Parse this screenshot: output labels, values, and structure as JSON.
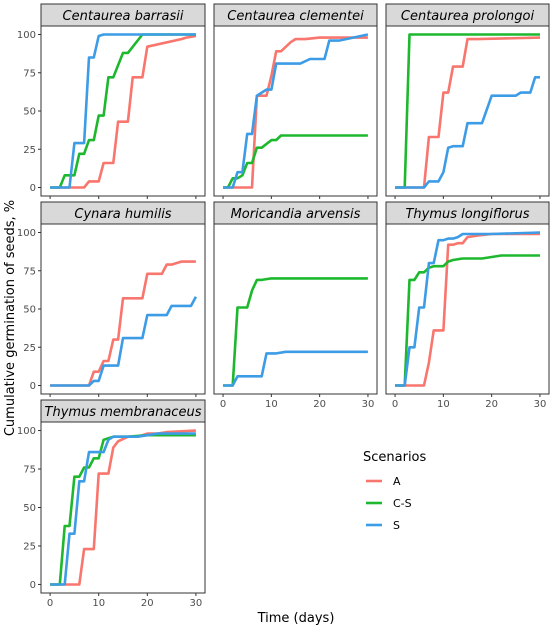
{
  "chart_data": {
    "type": "line",
    "ylabel": "Cumulative germination of seeds, %",
    "xlabel": "Time (days)",
    "xlim": [
      0,
      30
    ],
    "ylim": [
      0,
      100
    ],
    "xticks": [
      "0",
      "10",
      "20",
      "30"
    ],
    "yticks": [
      "0",
      "25",
      "50",
      "75",
      "100"
    ],
    "grid": false,
    "legend": {
      "title": "Scenarios",
      "placement": "bottom-right",
      "entries": [
        {
          "label": "A",
          "color": "#F8766D"
        },
        {
          "label": "C-S",
          "color": "#1DB82E"
        },
        {
          "label": "S",
          "color": "#3D9CE6"
        }
      ]
    },
    "panels": [
      {
        "species": "Centaurea barrasii",
        "series": [
          {
            "name": "A",
            "x": [
              0,
              7,
              8,
              10,
              11,
              13,
              14,
              16,
              17,
              19,
              20,
              27,
              28,
              30
            ],
            "y": [
              0,
              0,
              4,
              4,
              16,
              16,
              43,
              43,
              72,
              72,
              92,
              97,
              98,
              99
            ]
          },
          {
            "name": "C-S",
            "x": [
              0,
              2,
              3,
              5,
              6,
              7,
              8,
              9,
              10,
              11,
              12,
              13,
              15,
              16,
              19,
              30
            ],
            "y": [
              0,
              0,
              8,
              8,
              22,
              22,
              31,
              31,
              47,
              47,
              72,
              72,
              88,
              88,
              100,
              100
            ]
          },
          {
            "name": "S",
            "x": [
              0,
              4,
              5,
              7,
              8,
              9,
              10,
              11,
              30
            ],
            "y": [
              0,
              0,
              29,
              29,
              85,
              85,
              99,
              100,
              100
            ]
          }
        ]
      },
      {
        "species": "Centaurea clementei",
        "series": [
          {
            "name": "A",
            "x": [
              0,
              6,
              7,
              9,
              10,
              11,
              12,
              14,
              15,
              17,
              20,
              30
            ],
            "y": [
              0,
              0,
              60,
              60,
              73,
              89,
              89,
              95,
              97,
              97,
              98,
              98
            ]
          },
          {
            "name": "C-S",
            "x": [
              0,
              1,
              2,
              3,
              4,
              5,
              6,
              7,
              8,
              10,
              11,
              12,
              13,
              14,
              30
            ],
            "y": [
              0,
              0,
              6,
              6,
              8,
              16,
              16,
              26,
              26,
              31,
              31,
              34,
              34,
              34,
              34
            ]
          },
          {
            "name": "S",
            "x": [
              0,
              2,
              3,
              4,
              5,
              6,
              7,
              8,
              9,
              10,
              11,
              12,
              14,
              15,
              16,
              18,
              20,
              21,
              22,
              23,
              24,
              30
            ],
            "y": [
              0,
              0,
              10,
              10,
              35,
              35,
              60,
              62,
              64,
              64,
              81,
              81,
              81,
              81,
              81,
              84,
              84,
              84,
              96,
              96,
              96,
              100
            ]
          }
        ]
      },
      {
        "species": "Centaurea prolongoi",
        "series": [
          {
            "name": "A",
            "x": [
              0,
              6,
              7,
              9,
              10,
              11,
              12,
              14,
              15,
              17,
              30
            ],
            "y": [
              0,
              0,
              33,
              33,
              62,
              62,
              79,
              79,
              97,
              97,
              98
            ]
          },
          {
            "name": "C-S",
            "x": [
              0,
              2,
              3,
              30
            ],
            "y": [
              0,
              0,
              100,
              100
            ]
          },
          {
            "name": "S",
            "x": [
              0,
              6,
              7,
              9,
              10,
              11,
              12,
              14,
              15,
              16,
              17,
              18,
              20,
              21,
              22,
              23,
              24,
              25,
              26,
              27,
              28,
              29,
              30
            ],
            "y": [
              0,
              0,
              4,
              4,
              10,
              26,
              27,
              27,
              42,
              42,
              42,
              42,
              60,
              60,
              60,
              60,
              60,
              60,
              62,
              62,
              62,
              72,
              72
            ]
          }
        ]
      },
      {
        "species": "Cynara humilis",
        "series": [
          {
            "name": "A",
            "x": [
              0,
              8,
              9,
              10,
              11,
              12,
              13,
              14,
              15,
              16,
              17,
              19,
              20,
              22,
              23,
              24,
              25,
              27,
              28,
              30
            ],
            "y": [
              0,
              0,
              9,
              9,
              16,
              16,
              30,
              30,
              57,
              57,
              57,
              57,
              73,
              73,
              73,
              79,
              79,
              81,
              81,
              81
            ]
          },
          {
            "name": "C-S",
            "x": [],
            "y": []
          },
          {
            "name": "S",
            "x": [
              0,
              8,
              9,
              10,
              11,
              12,
              13,
              14,
              15,
              16,
              17,
              18,
              19,
              20,
              21,
              22,
              23,
              24,
              25,
              26,
              27,
              28,
              29,
              30
            ],
            "y": [
              0,
              0,
              3,
              3,
              13,
              13,
              13,
              13,
              31,
              31,
              31,
              31,
              31,
              46,
              46,
              46,
              46,
              46,
              52,
              52,
              52,
              52,
              52,
              58
            ]
          }
        ]
      },
      {
        "species": "Moricandia arvensis",
        "series": [
          {
            "name": "A",
            "x": [],
            "y": []
          },
          {
            "name": "C-S",
            "x": [
              0,
              2,
              3,
              5,
              6,
              7,
              8,
              10,
              30
            ],
            "y": [
              0,
              0,
              51,
              51,
              62,
              69,
              69,
              70,
              70
            ]
          },
          {
            "name": "S",
            "x": [
              0,
              2,
              3,
              4,
              5,
              6,
              7,
              8,
              9,
              10,
              11,
              13,
              15,
              30
            ],
            "y": [
              0,
              0,
              6,
              6,
              6,
              6,
              6,
              6,
              21,
              21,
              21,
              22,
              22,
              22
            ]
          }
        ]
      },
      {
        "species": "Thymus longiflorus",
        "series": [
          {
            "name": "A",
            "x": [
              0,
              6,
              7,
              8,
              9,
              10,
              11,
              12,
              13,
              14,
              15,
              17,
              20,
              30
            ],
            "y": [
              0,
              0,
              15,
              36,
              36,
              36,
              92,
              92,
              93,
              93,
              97,
              98,
              99,
              99
            ]
          },
          {
            "name": "C-S",
            "x": [
              0,
              2,
              3,
              4,
              5,
              6,
              7,
              8,
              10,
              11,
              12,
              14,
              16,
              18,
              20,
              22,
              26,
              30
            ],
            "y": [
              0,
              0,
              69,
              69,
              74,
              74,
              77,
              78,
              78,
              81,
              82,
              83,
              83,
              83,
              84,
              85,
              85,
              85
            ]
          },
          {
            "name": "S",
            "x": [
              0,
              2,
              3,
              4,
              5,
              6,
              7,
              8,
              9,
              10,
              11,
              12,
              13,
              14,
              16,
              20,
              30
            ],
            "y": [
              0,
              0,
              25,
              25,
              51,
              51,
              80,
              80,
              95,
              95,
              96,
              96,
              97,
              99,
              99,
              99,
              100
            ]
          }
        ]
      },
      {
        "species": "Thymus membranaceus",
        "series": [
          {
            "name": "A",
            "x": [
              0,
              6,
              7,
              8,
              9,
              10,
              11,
              12,
              13,
              14,
              16,
              18,
              20,
              22,
              24,
              30
            ],
            "y": [
              0,
              0,
              23,
              23,
              23,
              72,
              72,
              72,
              89,
              93,
              96,
              96,
              98,
              98,
              99,
              100
            ]
          },
          {
            "name": "C-S",
            "x": [
              0,
              2,
              3,
              4,
              5,
              6,
              7,
              8,
              9,
              10,
              11,
              12,
              13,
              14,
              16,
              20,
              30
            ],
            "y": [
              0,
              0,
              38,
              38,
              70,
              70,
              76,
              76,
              82,
              82,
              94,
              95,
              96,
              96,
              96,
              97,
              97
            ]
          },
          {
            "name": "S",
            "x": [
              0,
              3,
              4,
              5,
              6,
              7,
              8,
              9,
              10,
              11,
              12,
              13,
              14,
              15,
              16,
              18,
              20,
              22,
              30
            ],
            "y": [
              0,
              0,
              33,
              33,
              67,
              67,
              86,
              86,
              86,
              86,
              94,
              96,
              96,
              96,
              96,
              96,
              97,
              98,
              98
            ]
          }
        ]
      }
    ]
  }
}
